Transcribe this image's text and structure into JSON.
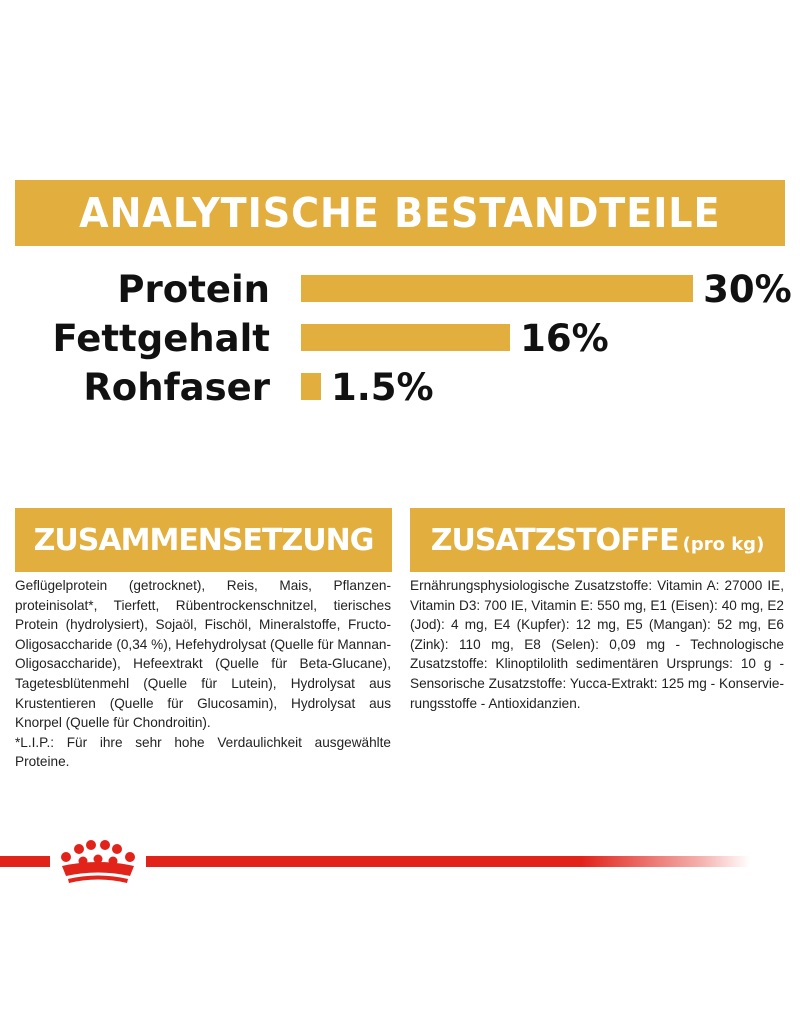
{
  "banner": {
    "title": "ANALYTISCHE BESTANDTEILE"
  },
  "nutrients": [
    {
      "label": "Protein",
      "value": "30%",
      "percent": 30
    },
    {
      "label": "Fettgehalt",
      "value": "16%",
      "percent": 16
    },
    {
      "label": "Rohfaser",
      "value": "1.5%",
      "percent": 1.5
    }
  ],
  "composition": {
    "heading": "ZUSAMMENSETZUNG",
    "text": "Geflügelprotein (getrocknet), Reis, Mais, Pflanzen-proteinisolat*, Tierfett, Rübentrockenschnitzel, tierisches Protein (hydrolysiert), Sojaöl, Fischöl, Mineralstoffe, Fructo-Oligosaccharide (0,34 %), Hefehydrolysat (Quelle für Mannan-Oligosaccharide), Hefeextrakt (Quelle für Beta-Glucane), Tagetesblütenmehl (Quelle für Lutein), Hydrolysat aus Krustentieren (Quelle für Glucosamin), Hydrolysat aus Knorpel (Quelle für Chondroitin).",
    "footnote": "*L.I.P.: Für ihre sehr hohe Verdaulichkeit ausgewählte Proteine."
  },
  "additives": {
    "heading": "ZUSATZSTOFFE",
    "heading_suffix": "(pro kg)",
    "text": "Ernährungsphysiologische Zusatzstoffe: Vitamin A: 27000 IE, Vitamin D3: 700 IE, Vitamin E: 550 mg, E1 (Eisen): 40 mg, E2 (Jod): 4 mg, E4 (Kupfer): 12 mg, E5 (Mangan): 52 mg, E6 (Zink): 110 mg, E8 (Selen): 0,09 mg - Technologische Zusatzstoffe: Klinoptilolith sedimentären Ursprungs: 10 g - Sensorische Zusatzstoffe: Yucca-Extrakt: 125 mg - Konservie-rungsstoffe - Antioxidanzien."
  },
  "colors": {
    "gold": "#e2ae3e",
    "brand_red": "#e1231a"
  },
  "icons": {
    "brand": "crown-logo-icon"
  }
}
